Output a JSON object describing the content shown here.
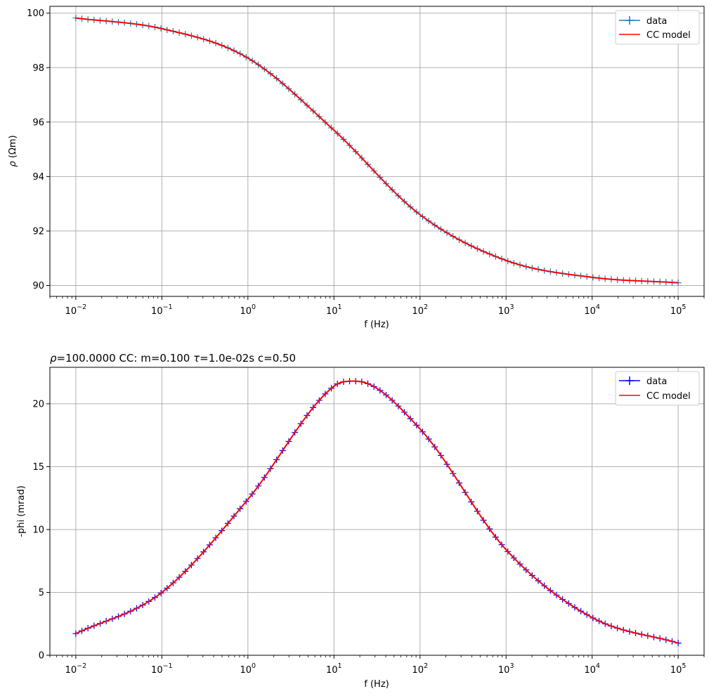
{
  "chart_data": [
    {
      "type": "line",
      "title": "",
      "xlabel": "f (Hz)",
      "ylabel_symbol": "ρ",
      "ylabel_unit": " (Ωm)",
      "xscale": "log",
      "xlim": [
        0.005,
        200000
      ],
      "ylim": [
        89.6,
        100.25
      ],
      "xticks": [
        0.01,
        0.1,
        1,
        10,
        100,
        1000,
        10000,
        100000
      ],
      "xtick_labels": [
        {
          "base": "10",
          "exp": "−2"
        },
        {
          "base": "10",
          "exp": "−1"
        },
        {
          "base": "10",
          "exp": "0"
        },
        {
          "base": "10",
          "exp": "1"
        },
        {
          "base": "10",
          "exp": "2"
        },
        {
          "base": "10",
          "exp": "3"
        },
        {
          "base": "10",
          "exp": "4"
        },
        {
          "base": "10",
          "exp": "5"
        }
      ],
      "yticks": [
        90,
        92,
        94,
        96,
        98,
        100
      ],
      "ytick_labels": [
        "90",
        "92",
        "94",
        "96",
        "98",
        "100"
      ],
      "grid": true,
      "legend_position": "top-right",
      "legend": [
        {
          "label": "data",
          "color": "#1f77b4",
          "marker": "+"
        },
        {
          "label": "CC model",
          "color": "#ff0000",
          "marker": ""
        }
      ],
      "series": [
        {
          "name": "data",
          "color": "#1f77b4",
          "marker": "+",
          "x_log_range": [
            -2,
            5
          ],
          "n_points": 100,
          "x": [
            0.01,
            0.1,
            1,
            10,
            100,
            1000,
            10000,
            100000
          ],
          "values": [
            99.82,
            99.43,
            98.35,
            95.7,
            92.6,
            90.92,
            90.3,
            90.1
          ]
        },
        {
          "name": "CC model",
          "color": "#ff0000",
          "marker": "",
          "x_log_range": [
            -2,
            5
          ],
          "n_points": 300,
          "x": [
            0.01,
            0.1,
            1,
            10,
            100,
            1000,
            10000,
            100000
          ],
          "values": [
            99.82,
            99.43,
            98.35,
            95.7,
            92.6,
            90.92,
            90.3,
            90.1
          ]
        }
      ]
    },
    {
      "type": "line",
      "title_prefix_symbol": "ρ",
      "title_mid": "=100.0000 CC: m=0.100 ",
      "title_tau_symbol": "τ",
      "title_suffix": "=1.0e-02s c=0.50",
      "xlabel": "f (Hz)",
      "ylabel": "-phi (mrad)",
      "xscale": "log",
      "xlim": [
        0.005,
        200000
      ],
      "ylim": [
        0,
        22.9
      ],
      "xticks": [
        0.01,
        0.1,
        1,
        10,
        100,
        1000,
        10000,
        100000
      ],
      "xtick_labels": [
        {
          "base": "10",
          "exp": "−2"
        },
        {
          "base": "10",
          "exp": "−1"
        },
        {
          "base": "10",
          "exp": "0"
        },
        {
          "base": "10",
          "exp": "1"
        },
        {
          "base": "10",
          "exp": "2"
        },
        {
          "base": "10",
          "exp": "3"
        },
        {
          "base": "10",
          "exp": "4"
        },
        {
          "base": "10",
          "exp": "5"
        }
      ],
      "yticks": [
        0,
        5,
        10,
        15,
        20
      ],
      "ytick_labels": [
        "0",
        "5",
        "10",
        "15",
        "20"
      ],
      "grid": true,
      "legend_position": "top-right",
      "legend": [
        {
          "label": "data",
          "color": "#0000ff",
          "marker": "+"
        },
        {
          "label": "CC model",
          "color": "#ff0000",
          "marker": ""
        }
      ],
      "series": [
        {
          "name": "data",
          "color": "#0000ff",
          "marker": "+",
          "x_log_range": [
            -2,
            5
          ],
          "n_points": 100,
          "x": [
            0.01,
            0.1,
            1,
            10,
            17.8,
            100,
            1000,
            10000,
            100000
          ],
          "values": [
            1.72,
            5.0,
            12.4,
            21.4,
            21.8,
            18.0,
            8.4,
            3.0,
            0.97
          ]
        },
        {
          "name": "CC model",
          "color": "#ff0000",
          "marker": "",
          "x_log_range": [
            -2,
            5
          ],
          "n_points": 300,
          "x": [
            0.01,
            0.1,
            1,
            10,
            17.8,
            100,
            1000,
            10000,
            100000
          ],
          "values": [
            1.72,
            5.0,
            12.4,
            21.4,
            21.8,
            18.0,
            8.4,
            3.0,
            0.97
          ]
        }
      ]
    }
  ]
}
